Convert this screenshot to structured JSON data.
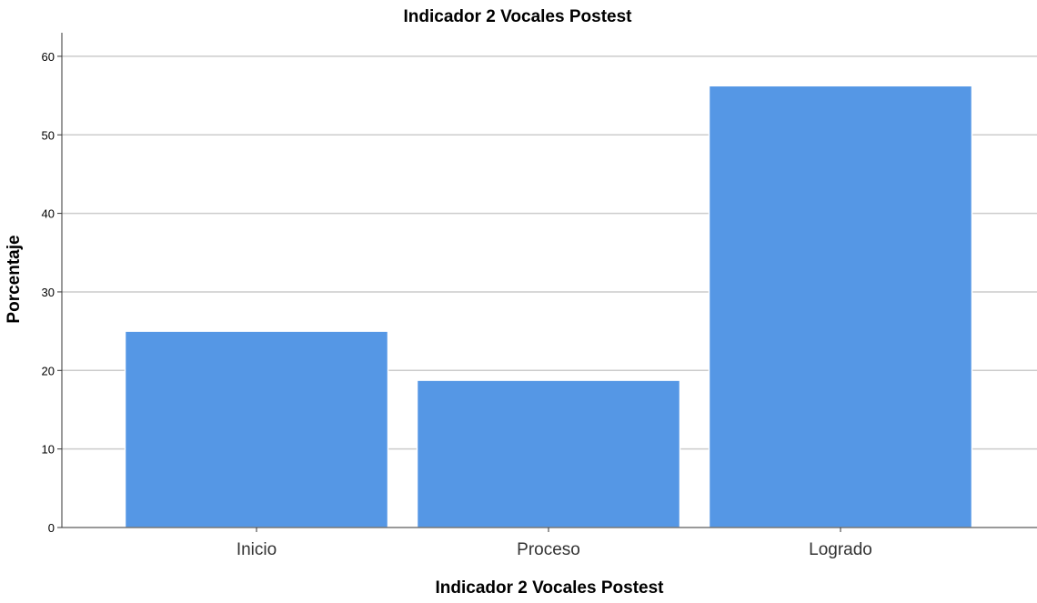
{
  "chart_data": {
    "type": "bar",
    "title": "Indicador 2 Vocales Postest",
    "xlabel": "Indicador 2 Vocales Postest",
    "ylabel": "Porcentaje",
    "categories": [
      "Inicio",
      "Proceso",
      "Logrado"
    ],
    "values": [
      25.0,
      18.75,
      56.25
    ],
    "ylim": [
      0,
      63
    ],
    "yticks": [
      0,
      10,
      20,
      30,
      40,
      50,
      60
    ],
    "grid": true,
    "bar_color": "#5597e5",
    "bar_edge_color": "#ffffff"
  }
}
